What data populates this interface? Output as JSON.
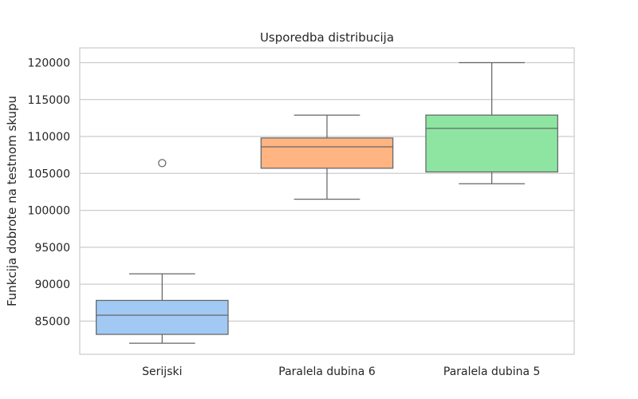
{
  "chart_data": {
    "type": "box",
    "title": "Usporedba distribucija",
    "xlabel": "",
    "ylabel": "Funkcija dobrote na testnom skupu",
    "ylim": [
      80500,
      122000
    ],
    "yticks": [
      85000,
      90000,
      95000,
      100000,
      105000,
      110000,
      115000,
      120000
    ],
    "grid": "horizontal",
    "categories": [
      "Serijski",
      "Paralela dubina 6",
      "Paralela dubina 5"
    ],
    "boxes": [
      {
        "category": "Serijski",
        "color": "#a1c9f4",
        "whisker_low": 82000,
        "q1": 83200,
        "median": 85800,
        "q3": 87800,
        "whisker_high": 91400,
        "outliers": [
          106400
        ]
      },
      {
        "category": "Paralela dubina 6",
        "color": "#ffb482",
        "whisker_low": 101500,
        "q1": 105700,
        "median": 108600,
        "q3": 109800,
        "whisker_high": 112900,
        "outliers": []
      },
      {
        "category": "Paralela dubina 5",
        "color": "#8de5a1",
        "whisker_low": 103600,
        "q1": 105200,
        "median": 111100,
        "q3": 112900,
        "whisker_high": 120000,
        "outliers": []
      }
    ]
  }
}
